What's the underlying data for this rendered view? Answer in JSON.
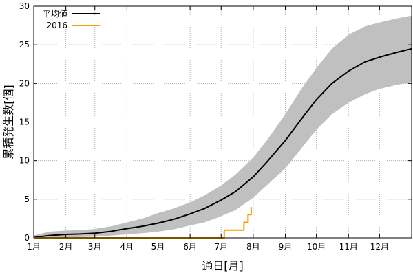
{
  "chart_data": {
    "type": "line",
    "xlabel": "通日[月]",
    "ylabel": "累積発生数[個]",
    "xlim": [
      0,
      365
    ],
    "ylim": [
      0,
      30
    ],
    "yticks": [
      0,
      5,
      10,
      15,
      20,
      25,
      30
    ],
    "xticks": [
      {
        "label": "1月",
        "day": 0
      },
      {
        "label": "2月",
        "day": 31
      },
      {
        "label": "3月",
        "day": 59
      },
      {
        "label": "4月",
        "day": 90
      },
      {
        "label": "5月",
        "day": 120
      },
      {
        "label": "6月",
        "day": 151
      },
      {
        "label": "7月",
        "day": 181
      },
      {
        "label": "8月",
        "day": 212
      },
      {
        "label": "9月",
        "day": 243
      },
      {
        "label": "10月",
        "day": 273
      },
      {
        "label": "11月",
        "day": 304
      },
      {
        "label": "12月",
        "day": 334
      }
    ],
    "grid": true,
    "legend": "top-left",
    "series": [
      {
        "name": "平均値",
        "color": "#000000",
        "band_color": "#c0c0c0",
        "points": [
          {
            "x": 0,
            "y": 0.05,
            "lo": 0.0,
            "hi": 0.3
          },
          {
            "x": 15,
            "y": 0.3,
            "lo": 0.0,
            "hi": 0.8
          },
          {
            "x": 31,
            "y": 0.45,
            "lo": 0.05,
            "hi": 0.95
          },
          {
            "x": 45,
            "y": 0.5,
            "lo": 0.1,
            "hi": 1.0
          },
          {
            "x": 59,
            "y": 0.6,
            "lo": 0.15,
            "hi": 1.15
          },
          {
            "x": 75,
            "y": 0.85,
            "lo": 0.3,
            "hi": 1.5
          },
          {
            "x": 90,
            "y": 1.2,
            "lo": 0.45,
            "hi": 2.0
          },
          {
            "x": 105,
            "y": 1.5,
            "lo": 0.6,
            "hi": 2.5
          },
          {
            "x": 120,
            "y": 1.9,
            "lo": 0.8,
            "hi": 3.2
          },
          {
            "x": 135,
            "y": 2.4,
            "lo": 1.1,
            "hi": 3.8
          },
          {
            "x": 151,
            "y": 3.1,
            "lo": 1.6,
            "hi": 4.6
          },
          {
            "x": 165,
            "y": 3.8,
            "lo": 2.0,
            "hi": 5.5
          },
          {
            "x": 181,
            "y": 4.9,
            "lo": 2.8,
            "hi": 6.8
          },
          {
            "x": 195,
            "y": 6.0,
            "lo": 3.6,
            "hi": 8.2
          },
          {
            "x": 212,
            "y": 7.9,
            "lo": 5.2,
            "hi": 10.4
          },
          {
            "x": 225,
            "y": 9.8,
            "lo": 6.8,
            "hi": 12.6
          },
          {
            "x": 243,
            "y": 12.6,
            "lo": 9.0,
            "hi": 16.0
          },
          {
            "x": 258,
            "y": 15.3,
            "lo": 11.5,
            "hi": 19.2
          },
          {
            "x": 273,
            "y": 17.9,
            "lo": 14.0,
            "hi": 22.0
          },
          {
            "x": 288,
            "y": 20.0,
            "lo": 16.0,
            "hi": 24.5
          },
          {
            "x": 304,
            "y": 21.6,
            "lo": 17.5,
            "hi": 26.3
          },
          {
            "x": 320,
            "y": 22.8,
            "lo": 18.6,
            "hi": 27.4
          },
          {
            "x": 334,
            "y": 23.4,
            "lo": 19.3,
            "hi": 27.9
          },
          {
            "x": 350,
            "y": 24.0,
            "lo": 19.8,
            "hi": 28.4
          },
          {
            "x": 365,
            "y": 24.5,
            "lo": 20.2,
            "hi": 28.8
          }
        ]
      },
      {
        "name": "2016",
        "color": "#f0a000",
        "step": true,
        "points": [
          {
            "x": 0,
            "y": 0
          },
          {
            "x": 184,
            "y": 0
          },
          {
            "x": 184,
            "y": 1
          },
          {
            "x": 203,
            "y": 1
          },
          {
            "x": 203,
            "y": 2
          },
          {
            "x": 207,
            "y": 2
          },
          {
            "x": 207,
            "y": 3
          },
          {
            "x": 210,
            "y": 3
          },
          {
            "x": 210,
            "y": 4
          }
        ]
      }
    ]
  }
}
